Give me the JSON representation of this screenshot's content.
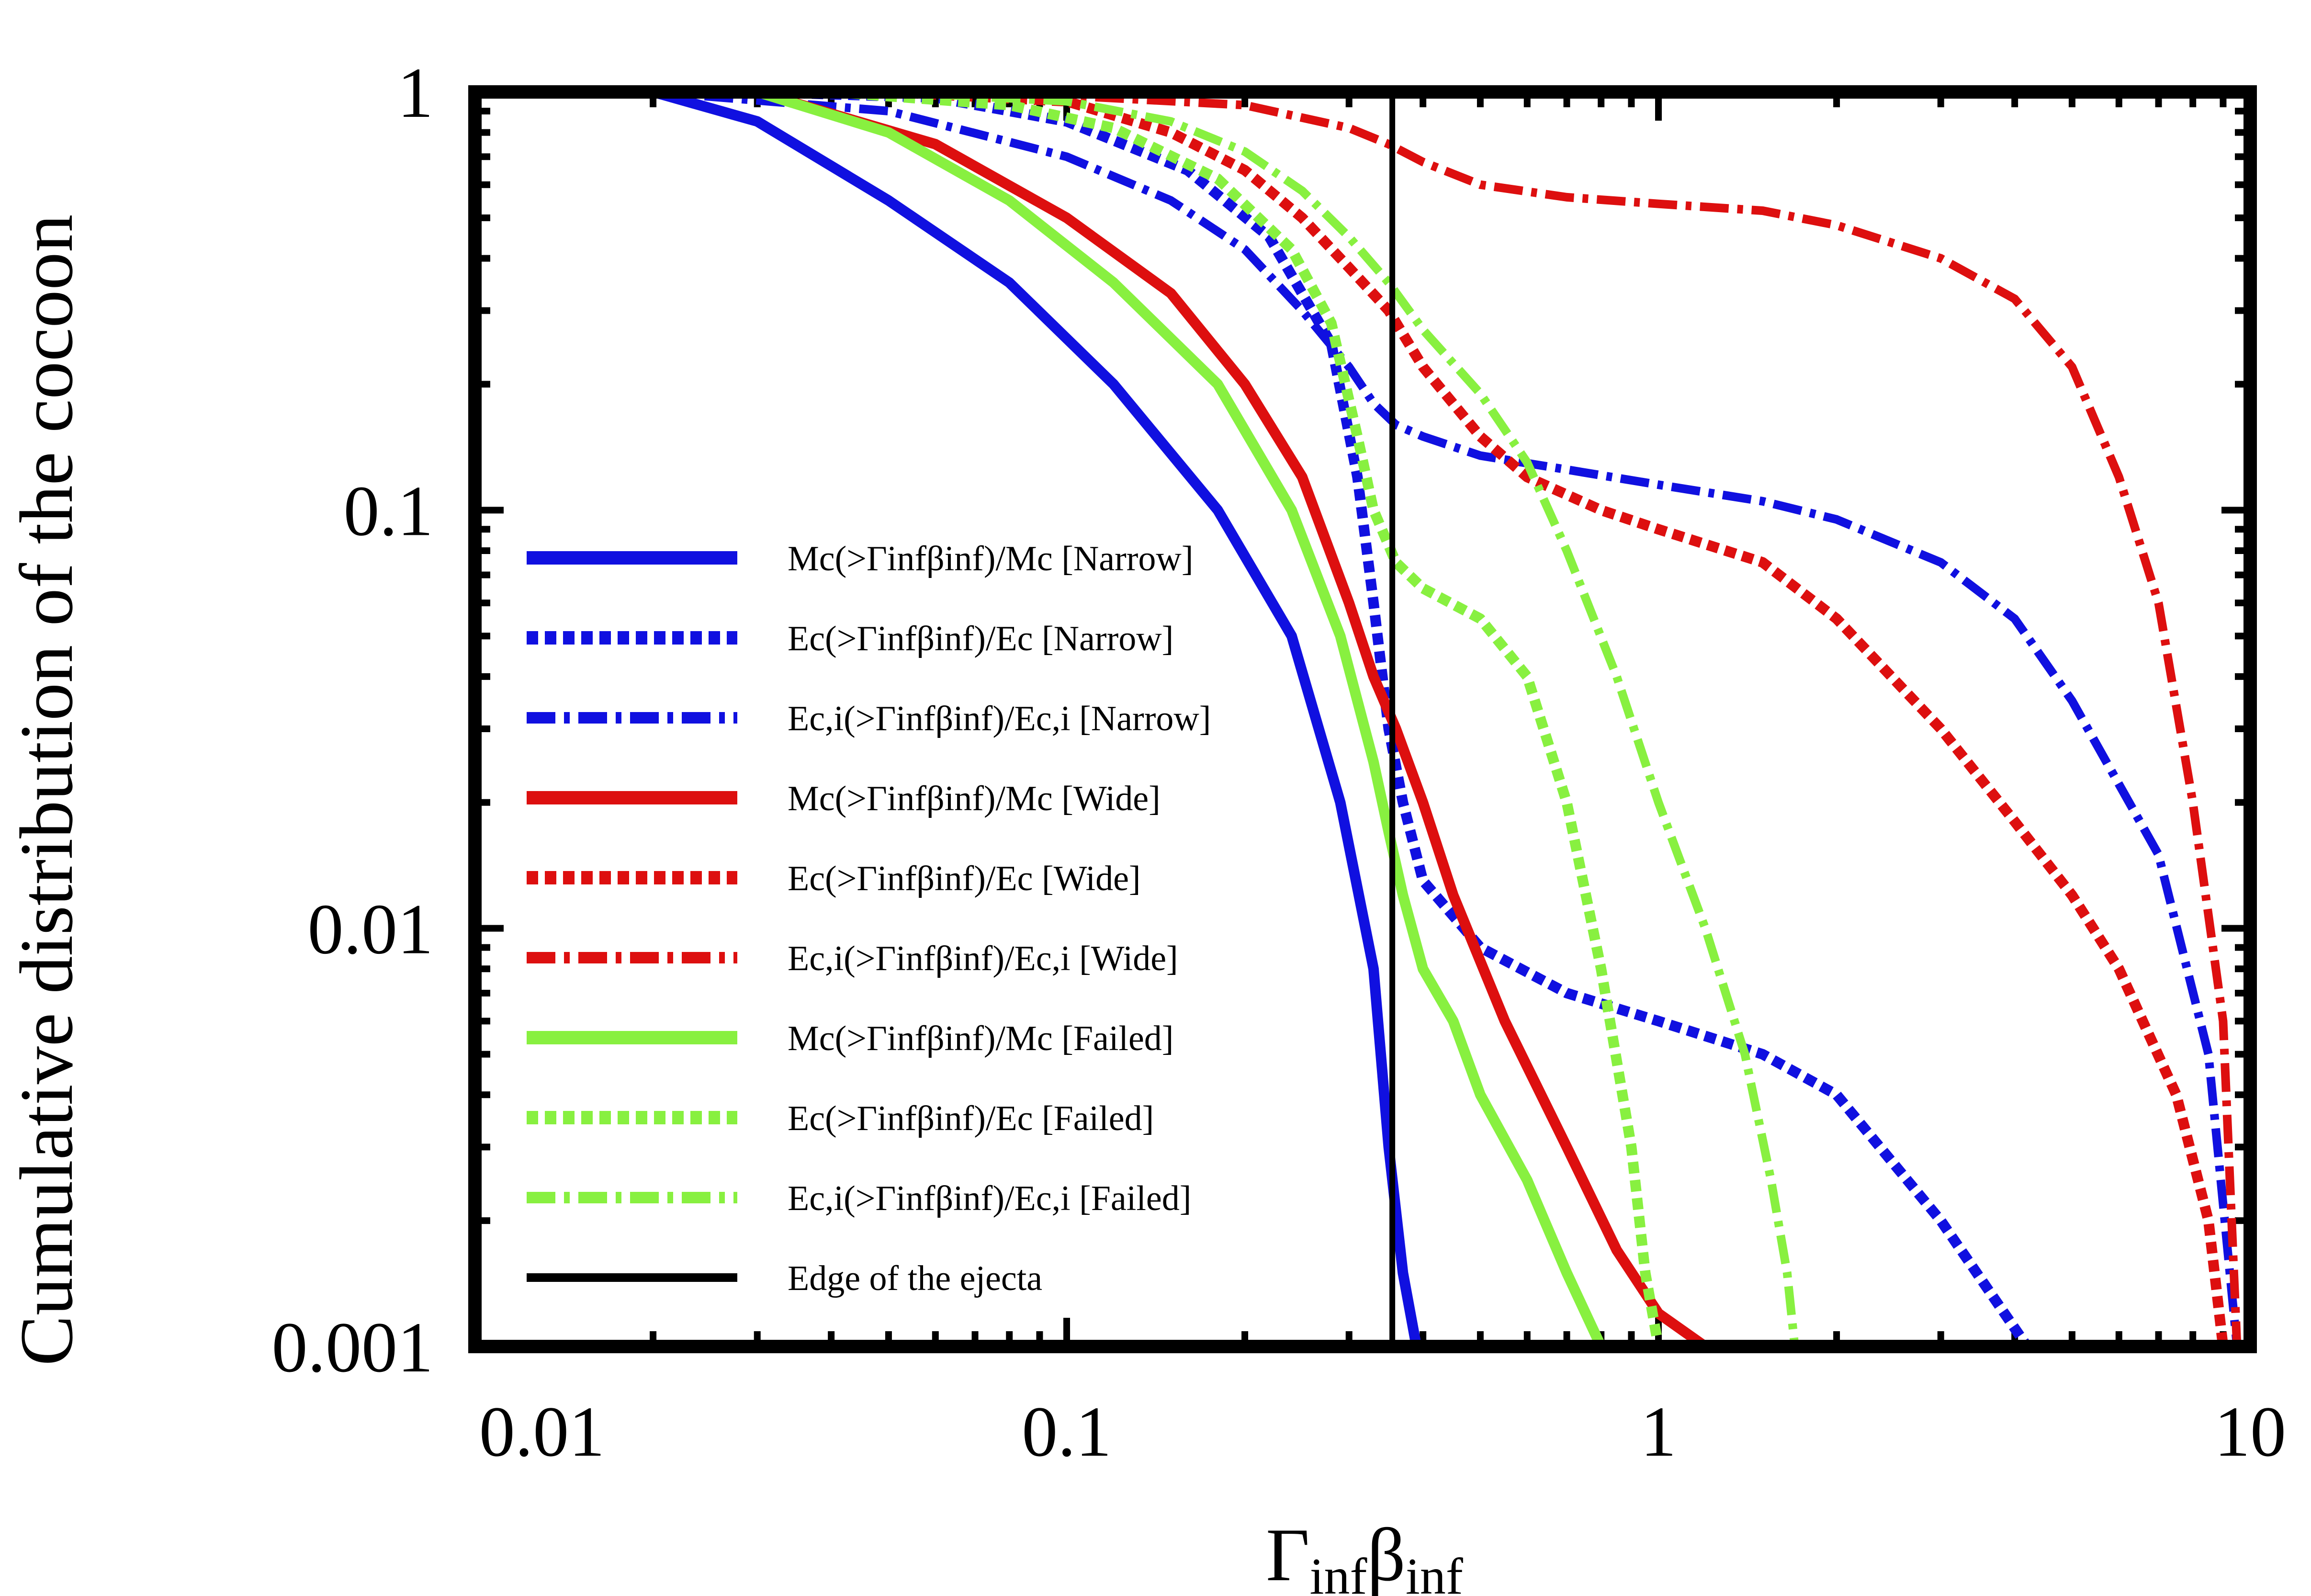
{
  "chart_data": {
    "type": "line",
    "xscale": "log",
    "yscale": "log",
    "xlim": [
      0.01,
      10
    ],
    "ylim": [
      0.001,
      1
    ],
    "xlabel": "Γinfβinf",
    "ylabel": "Cumulative distribution of the cocoon",
    "x_ticks": [
      "0.01",
      "0.1",
      "1",
      "10"
    ],
    "y_ticks": [
      "0.001",
      "0.01",
      "0.1",
      "1"
    ],
    "legend_position": "left",
    "series": [
      {
        "name": "Mc(>Γinfβinf)/Mc [Narrow]",
        "color": "#1010e0",
        "style": "solid",
        "x": [
          0.02,
          0.03,
          0.05,
          0.08,
          0.12,
          0.18,
          0.24,
          0.29,
          0.33,
          0.35,
          0.37,
          0.39
        ],
        "y": [
          1.0,
          0.85,
          0.55,
          0.35,
          0.2,
          0.1,
          0.05,
          0.02,
          0.008,
          0.003,
          0.0015,
          0.001
        ]
      },
      {
        "name": "Ec(>Γinfβinf)/Ec [Narrow]",
        "color": "#1010e0",
        "style": "dotted",
        "x": [
          0.03,
          0.06,
          0.1,
          0.16,
          0.22,
          0.28,
          0.31,
          0.33,
          0.35,
          0.37,
          0.4,
          0.5,
          0.7,
          1.0,
          1.5,
          2.0,
          3.0,
          4.2
        ],
        "y": [
          1.0,
          0.97,
          0.85,
          0.65,
          0.45,
          0.25,
          0.12,
          0.06,
          0.03,
          0.02,
          0.013,
          0.009,
          0.007,
          0.006,
          0.005,
          0.004,
          0.002,
          0.001
        ]
      },
      {
        "name": "Ec,i(>Γinfβinf)/Ec,i [Narrow]",
        "color": "#1010e0",
        "style": "dashdot",
        "x": [
          0.02,
          0.05,
          0.1,
          0.15,
          0.2,
          0.25,
          0.3,
          0.33,
          0.36,
          0.4,
          0.5,
          0.7,
          1.0,
          1.5,
          2.0,
          3.0,
          4.0,
          5.0,
          7.0,
          8.5,
          9.5
        ],
        "y": [
          1.0,
          0.9,
          0.7,
          0.55,
          0.42,
          0.3,
          0.22,
          0.18,
          0.16,
          0.15,
          0.135,
          0.125,
          0.115,
          0.105,
          0.095,
          0.075,
          0.055,
          0.035,
          0.015,
          0.005,
          0.001
        ]
      },
      {
        "name": "Mc(>Γinfβinf)/Mc [Wide]",
        "color": "#dd0f0f",
        "style": "solid",
        "x": [
          0.03,
          0.06,
          0.1,
          0.15,
          0.2,
          0.25,
          0.3,
          0.33,
          0.36,
          0.4,
          0.45,
          0.55,
          0.7,
          0.85,
          1.0,
          1.2
        ],
        "y": [
          1.0,
          0.75,
          0.5,
          0.33,
          0.2,
          0.12,
          0.06,
          0.04,
          0.03,
          0.02,
          0.012,
          0.006,
          0.003,
          0.0017,
          0.0012,
          0.001
        ]
      },
      {
        "name": "Ec(>Γinfβinf)/Ec [Wide]",
        "color": "#dd0f0f",
        "style": "dotted",
        "x": [
          0.05,
          0.1,
          0.15,
          0.2,
          0.25,
          0.3,
          0.35,
          0.4,
          0.5,
          0.6,
          0.8,
          1.0,
          1.5,
          2.0,
          3.0,
          4.0,
          5.0,
          6.0,
          7.5,
          8.5,
          9.0
        ],
        "y": [
          1.0,
          0.95,
          0.8,
          0.65,
          0.5,
          0.38,
          0.3,
          0.22,
          0.15,
          0.12,
          0.1,
          0.09,
          0.075,
          0.055,
          0.03,
          0.018,
          0.012,
          0.008,
          0.004,
          0.002,
          0.001
        ]
      },
      {
        "name": "Ec,i(>Γinfβinf)/Ec,i [Wide]",
        "color": "#dd0f0f",
        "style": "dashdot",
        "x": [
          0.05,
          0.1,
          0.2,
          0.3,
          0.35,
          0.4,
          0.5,
          0.7,
          1.0,
          1.5,
          2.0,
          3.0,
          4.0,
          5.0,
          6.0,
          7.0,
          8.0,
          9.0,
          9.5
        ],
        "y": [
          1.0,
          0.98,
          0.93,
          0.82,
          0.75,
          0.68,
          0.6,
          0.56,
          0.54,
          0.52,
          0.48,
          0.4,
          0.32,
          0.22,
          0.12,
          0.06,
          0.02,
          0.006,
          0.001
        ]
      },
      {
        "name": "Mc(>Γinfβinf)/Mc [Failed]",
        "color": "#88f040",
        "style": "solid",
        "x": [
          0.03,
          0.05,
          0.08,
          0.12,
          0.18,
          0.24,
          0.29,
          0.33,
          0.35,
          0.37,
          0.4,
          0.45,
          0.5,
          0.6,
          0.7,
          0.8
        ],
        "y": [
          1.0,
          0.8,
          0.55,
          0.35,
          0.2,
          0.1,
          0.05,
          0.025,
          0.017,
          0.012,
          0.008,
          0.006,
          0.004,
          0.0025,
          0.0015,
          0.001
        ]
      },
      {
        "name": "Ec(>Γinfβinf)/Ec [Failed]",
        "color": "#88f040",
        "style": "dotted",
        "x": [
          0.04,
          0.08,
          0.12,
          0.18,
          0.24,
          0.28,
          0.31,
          0.33,
          0.36,
          0.4,
          0.5,
          0.6,
          0.7,
          0.8,
          0.9,
          0.95,
          1.0
        ],
        "y": [
          1.0,
          0.93,
          0.82,
          0.62,
          0.42,
          0.28,
          0.15,
          0.1,
          0.075,
          0.065,
          0.055,
          0.04,
          0.02,
          0.008,
          0.003,
          0.0015,
          0.001
        ]
      },
      {
        "name": "Ec,i(>Γinfβinf)/Ec,i [Failed]",
        "color": "#88f040",
        "style": "dashdot",
        "x": [
          0.05,
          0.1,
          0.15,
          0.2,
          0.25,
          0.3,
          0.35,
          0.4,
          0.5,
          0.6,
          0.7,
          0.85,
          1.0,
          1.2,
          1.4,
          1.55,
          1.65,
          1.7
        ],
        "y": [
          1.0,
          0.95,
          0.85,
          0.72,
          0.58,
          0.45,
          0.35,
          0.27,
          0.19,
          0.13,
          0.08,
          0.04,
          0.02,
          0.01,
          0.005,
          0.0025,
          0.0015,
          0.001
        ]
      },
      {
        "name": "Edge of the ejecta",
        "color": "#000000",
        "style": "vline",
        "x": [
          0.355,
          0.355
        ],
        "y": [
          0.001,
          1.0
        ]
      }
    ]
  }
}
